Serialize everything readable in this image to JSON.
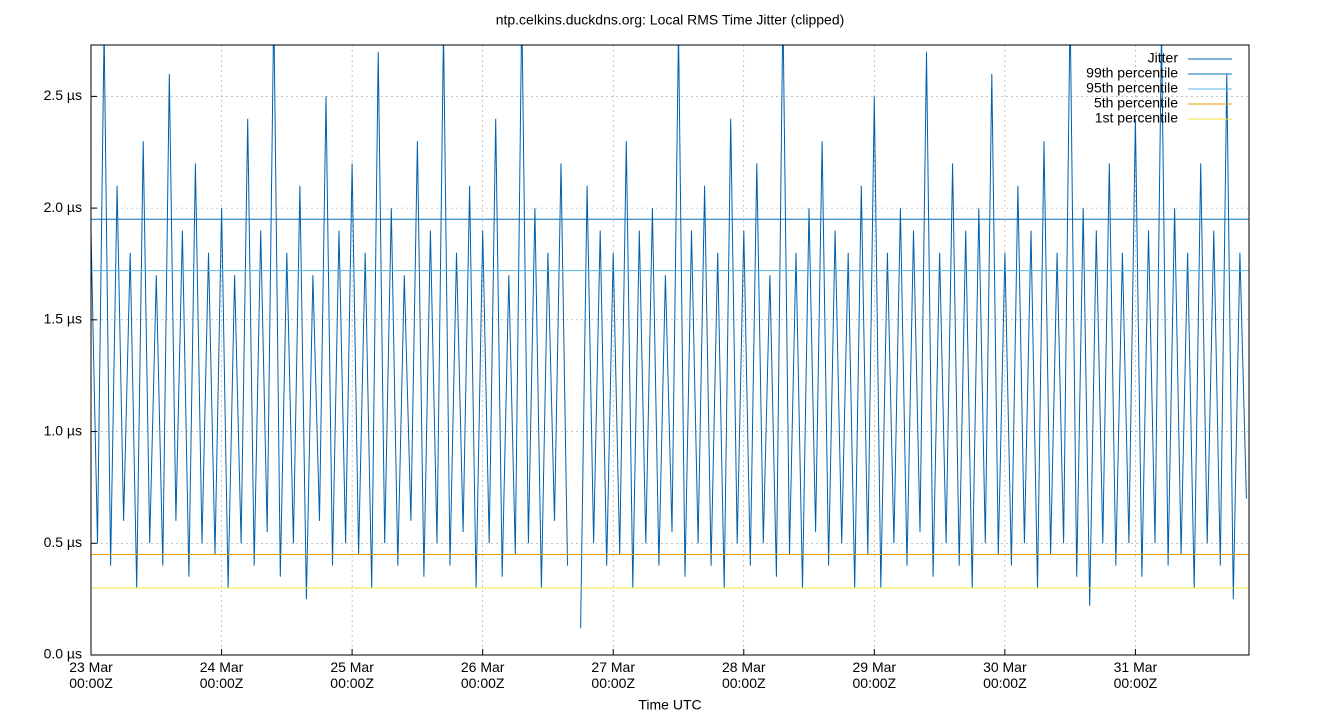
{
  "chart_data": {
    "type": "line",
    "title": "ntp.celkins.duckdns.org: Local RMS Time Jitter (clipped)",
    "x_label": "Time UTC",
    "xlim": [
      23,
      31.87
    ],
    "ylim": [
      0,
      2.73
    ],
    "xticks": [
      {
        "value": 23,
        "label": "23 Mar\n00:00Z"
      },
      {
        "value": 24,
        "label": "24 Mar\n00:00Z"
      },
      {
        "value": 25,
        "label": "25 Mar\n00:00Z"
      },
      {
        "value": 26,
        "label": "26 Mar\n00:00Z"
      },
      {
        "value": 27,
        "label": "27 Mar\n00:00Z"
      },
      {
        "value": 28,
        "label": "28 Mar\n00:00Z"
      },
      {
        "value": 29,
        "label": "29 Mar\n00:00Z"
      },
      {
        "value": 30,
        "label": "30 Mar\n00:00Z"
      },
      {
        "value": 31,
        "label": "31 Mar\n00:00Z"
      }
    ],
    "yticks": [
      {
        "value": 0,
        "label": "0.0 µs"
      },
      {
        "value": 0.5,
        "label": "0.5 µs"
      },
      {
        "value": 1,
        "label": "1.0 µs"
      },
      {
        "value": 1.5,
        "label": "1.5 µs"
      },
      {
        "value": 2,
        "label": "2.0 µs"
      },
      {
        "value": 2.5,
        "label": "2.5 µs"
      }
    ],
    "grid": true,
    "legend": "top-right",
    "x": [
      23.0,
      23.05,
      23.1,
      23.15,
      23.2,
      23.25,
      23.3,
      23.35,
      23.4,
      23.45,
      23.5,
      23.55,
      23.6,
      23.65,
      23.7,
      23.75,
      23.8,
      23.85,
      23.9,
      23.95,
      24.0,
      24.05,
      24.1,
      24.15,
      24.2,
      24.25,
      24.3,
      24.35,
      24.4,
      24.45,
      24.5,
      24.55,
      24.6,
      24.65,
      24.7,
      24.75,
      24.8,
      24.85,
      24.9,
      24.95,
      25.0,
      25.05,
      25.1,
      25.15,
      25.2,
      25.25,
      25.3,
      25.35,
      25.4,
      25.45,
      25.5,
      25.55,
      25.6,
      25.65,
      25.7,
      25.75,
      25.8,
      25.85,
      25.9,
      25.95,
      26.0,
      26.05,
      26.1,
      26.15,
      26.2,
      26.25,
      26.3,
      26.35,
      26.4,
      26.45,
      26.5,
      26.55,
      26.6,
      26.65,
      26.7,
      26.75,
      26.8,
      26.85,
      26.9,
      26.95,
      27.0,
      27.05,
      27.1,
      27.15,
      27.2,
      27.25,
      27.3,
      27.35,
      27.4,
      27.45,
      27.5,
      27.55,
      27.6,
      27.65,
      27.7,
      27.75,
      27.8,
      27.85,
      27.9,
      27.95,
      28.0,
      28.05,
      28.1,
      28.15,
      28.2,
      28.25,
      28.3,
      28.35,
      28.4,
      28.45,
      28.5,
      28.55,
      28.6,
      28.65,
      28.7,
      28.75,
      28.8,
      28.85,
      28.9,
      28.95,
      29.0,
      29.05,
      29.1,
      29.15,
      29.2,
      29.25,
      29.3,
      29.35,
      29.4,
      29.45,
      29.5,
      29.55,
      29.6,
      29.65,
      29.7,
      29.75,
      29.8,
      29.85,
      29.9,
      29.95,
      30.0,
      30.05,
      30.1,
      30.15,
      30.2,
      30.25,
      30.3,
      30.35,
      30.4,
      30.45,
      30.5,
      30.55,
      30.6,
      30.65,
      30.7,
      30.75,
      30.8,
      30.85,
      30.9,
      30.95,
      31.0,
      31.05,
      31.1,
      31.15,
      31.2,
      31.25,
      31.3,
      31.35,
      31.4,
      31.45,
      31.5,
      31.55,
      31.6,
      31.65,
      31.7,
      31.75,
      31.8,
      31.85
    ],
    "series": [
      {
        "name": "Jitter",
        "color": "#0060ad",
        "values": [
          1.9,
          0.5,
          2.8,
          0.4,
          2.1,
          0.6,
          1.8,
          0.3,
          2.3,
          0.5,
          1.7,
          0.4,
          2.6,
          0.6,
          1.9,
          0.35,
          2.2,
          0.5,
          1.8,
          0.45,
          2.0,
          0.3,
          1.7,
          0.5,
          2.4,
          0.4,
          1.9,
          0.55,
          2.9,
          0.35,
          1.8,
          0.5,
          2.1,
          0.25,
          1.7,
          0.6,
          2.5,
          0.4,
          1.9,
          0.5,
          2.2,
          0.45,
          1.8,
          0.3,
          2.7,
          0.5,
          2.0,
          0.4,
          1.7,
          0.6,
          2.3,
          0.35,
          1.9,
          0.5,
          2.8,
          0.4,
          1.8,
          0.55,
          2.1,
          0.3,
          1.9,
          0.5,
          2.4,
          0.35,
          1.7,
          0.45,
          2.9,
          0.5,
          2.0,
          0.3,
          1.8,
          0.6,
          2.2,
          0.4,
          null,
          0.12,
          2.1,
          0.5,
          1.9,
          0.4,
          1.8,
          0.45,
          2.3,
          0.3,
          1.9,
          0.5,
          2.0,
          0.4,
          1.7,
          0.55,
          2.8,
          0.35,
          1.9,
          0.5,
          2.1,
          0.4,
          1.8,
          0.3,
          2.4,
          0.5,
          1.9,
          0.4,
          2.2,
          0.5,
          1.7,
          0.35,
          2.9,
          0.45,
          1.8,
          0.3,
          2.0,
          0.55,
          2.3,
          0.4,
          1.9,
          0.5,
          1.8,
          0.3,
          2.1,
          0.45,
          2.5,
          0.3,
          1.8,
          0.5,
          2.0,
          0.4,
          1.9,
          0.55,
          2.7,
          0.35,
          1.8,
          0.5,
          2.2,
          0.4,
          1.9,
          0.3,
          2.0,
          0.5,
          2.6,
          0.45,
          1.8,
          0.4,
          2.1,
          0.5,
          1.9,
          0.3,
          2.3,
          0.45,
          1.8,
          0.5,
          2.9,
          0.35,
          2.0,
          0.22,
          1.9,
          0.5,
          2.2,
          0.4,
          1.8,
          0.5,
          2.4,
          0.35,
          1.9,
          0.5,
          2.8,
          0.4,
          2.0,
          0.45,
          1.8,
          0.3,
          2.2,
          0.5,
          1.9,
          0.4,
          2.6,
          0.25,
          1.8,
          0.7
        ]
      }
    ],
    "reference_lines": [
      {
        "name": "99th percentile",
        "color": "#0072b2",
        "value": 1.95
      },
      {
        "name": "95th percentile",
        "color": "#56b4e9",
        "value": 1.72
      },
      {
        "name": "5th percentile",
        "color": "#e69f00",
        "value": 0.45
      },
      {
        "name": "1st percentile",
        "color": "#f0e442",
        "value": 0.3
      }
    ]
  }
}
